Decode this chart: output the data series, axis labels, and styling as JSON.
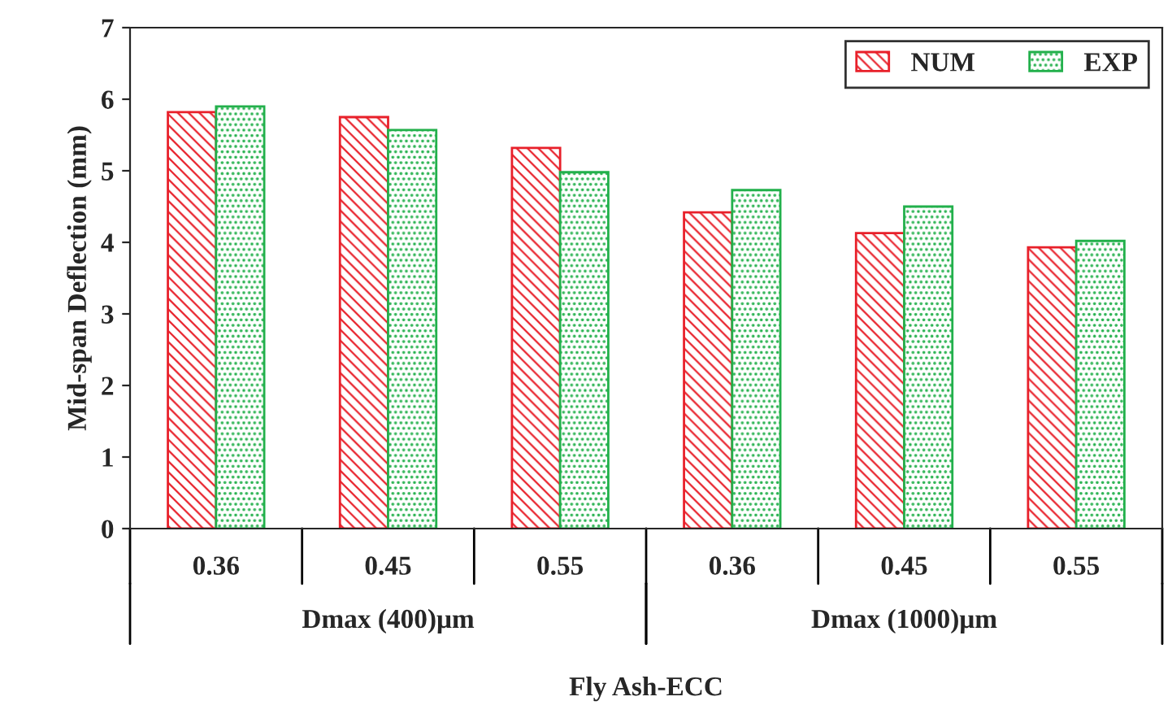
{
  "chart_data": {
    "type": "bar",
    "ylabel": "Mid-span Deflection (mm)",
    "xlabel": "Fly Ash-ECC",
    "categories": [
      "0.36",
      "0.45",
      "0.55",
      "0.36",
      "0.45",
      "0.55"
    ],
    "series": [
      {
        "name": "NUM",
        "color": "#e8202a",
        "values": [
          5.82,
          5.75,
          5.32,
          4.42,
          4.13,
          3.93
        ]
      },
      {
        "name": "EXP",
        "color": "#22b04b",
        "values": [
          5.9,
          5.57,
          4.98,
          4.73,
          4.5,
          4.02
        ]
      }
    ],
    "annotations": [
      "Dmax (400)μm",
      "Dmax (1000)μm"
    ],
    "ylim": [
      0,
      7
    ],
    "yticks": [
      0,
      1,
      2,
      3,
      4,
      5,
      6,
      7
    ],
    "grid": false,
    "legend": "top right"
  }
}
